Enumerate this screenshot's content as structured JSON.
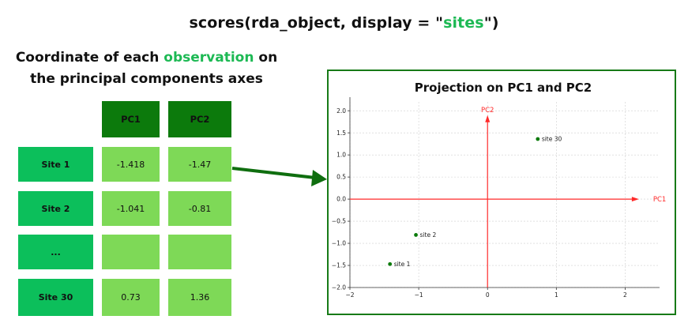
{
  "header": {
    "prefix": "scores(rda_object, display = \"",
    "highlight": "sites",
    "suffix": "\")"
  },
  "subtitle": {
    "line1_prefix": "Coordinate of each ",
    "line1_highlight": "observation",
    "line1_suffix": " on",
    "line2": "the principal components axes"
  },
  "table": {
    "columns": [
      "PC1",
      "PC2"
    ],
    "rows": [
      {
        "label": "Site 1",
        "pc1": "-1.418",
        "pc2": "-1.47"
      },
      {
        "label": "Site 2",
        "pc1": "-1.041",
        "pc2": "-0.81"
      },
      {
        "label": "...",
        "pc1": "",
        "pc2": ""
      },
      {
        "label": "Site 30",
        "pc1": "0.73",
        "pc2": "1.36"
      }
    ]
  },
  "colors": {
    "accent_green": "#1db954",
    "header_green": "#0c7a0c",
    "row_green": "#0cbf5b",
    "cell_green": "#7ed957",
    "arrow_green": "#0f6e0f",
    "axis_red": "#ff2a2a",
    "point_green": "#0a7a0a"
  },
  "chart_data": {
    "type": "scatter",
    "title": "Projection on PC1 and PC2",
    "xlim": [
      -2,
      2.5
    ],
    "ylim": [
      -2,
      2.2
    ],
    "xticks": [
      -2,
      -1,
      0,
      1,
      2
    ],
    "yticks": [
      -2.0,
      -1.5,
      -1.0,
      -0.5,
      0.0,
      0.5,
      1.0,
      1.5,
      2.0
    ],
    "grid": true,
    "axis_arrows": {
      "x_label": "PC1",
      "y_label": "PC2"
    },
    "points": [
      {
        "label": "site 1",
        "x": -1.418,
        "y": -1.47
      },
      {
        "label": "site 2",
        "x": -1.041,
        "y": -0.81
      },
      {
        "label": "site 30",
        "x": 0.73,
        "y": 1.36
      }
    ]
  }
}
